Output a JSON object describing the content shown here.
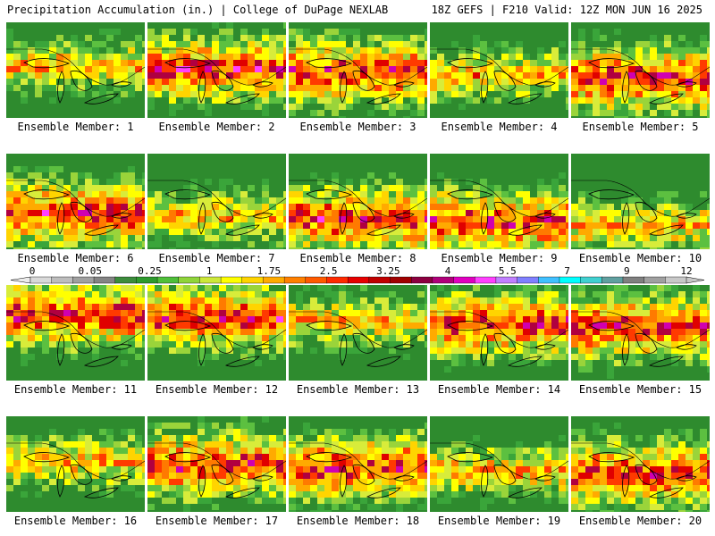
{
  "header": {
    "left": "Precipitation Accumulation (in.) | College of DuPage NEXLAB",
    "right": "18Z GEFS | F210 Valid: 12Z MON JUN 16 2025"
  },
  "panels": [
    {
      "label": "Ensemble Member: 1"
    },
    {
      "label": "Ensemble Member: 2"
    },
    {
      "label": "Ensemble Member: 3"
    },
    {
      "label": "Ensemble Member: 4"
    },
    {
      "label": "Ensemble Member: 5"
    },
    {
      "label": "Ensemble Member: 6"
    },
    {
      "label": "Ensemble Member: 7"
    },
    {
      "label": "Ensemble Member: 8"
    },
    {
      "label": "Ensemble Member: 9"
    },
    {
      "label": "Ensemble Member: 10"
    },
    {
      "label": "Ensemble Member: 11"
    },
    {
      "label": "Ensemble Member: 12"
    },
    {
      "label": "Ensemble Member: 13"
    },
    {
      "label": "Ensemble Member: 14"
    },
    {
      "label": "Ensemble Member: 15"
    },
    {
      "label": "Ensemble Member: 16"
    },
    {
      "label": "Ensemble Member: 17"
    },
    {
      "label": "Ensemble Member: 18"
    },
    {
      "label": "Ensemble Member: 19"
    },
    {
      "label": "Ensemble Member: 20"
    }
  ],
  "colorbar": {
    "tick_labels": [
      "0",
      "0.05",
      "0.25",
      "1",
      "1.75",
      "2.5",
      "3.25",
      "4",
      "5.5",
      "7",
      "9",
      "12"
    ],
    "colors": [
      "#d9d9d9",
      "#bdbdbd",
      "#a0a0a0",
      "#848484",
      "#3c8c3c",
      "#2e9a2e",
      "#4fbf3a",
      "#8fd43a",
      "#cde83a",
      "#ffff00",
      "#ffd400",
      "#ffaa00",
      "#ff8000",
      "#ff5a00",
      "#ff2a00",
      "#e60000",
      "#c00000",
      "#a00000",
      "#8c0040",
      "#b0007a",
      "#e000c0",
      "#ff40ff",
      "#c080ff",
      "#8080ff",
      "#40c0ff",
      "#00ffff",
      "#40d0d0",
      "#60a0a0",
      "#808080",
      "#a0a0a0",
      "#c8c8c8"
    ]
  }
}
